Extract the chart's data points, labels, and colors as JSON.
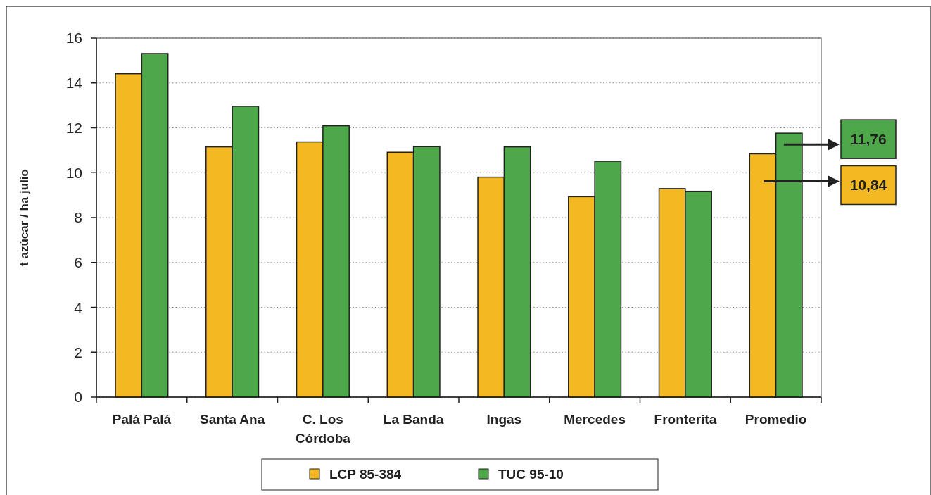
{
  "chart_data": {
    "type": "bar",
    "ylabel": "t azúcar / ha julio",
    "categories": [
      "Palá Palá",
      "Santa Ana",
      "C. Los Córdoba",
      "La Banda",
      "Ingas",
      "Mercedes",
      "Fronterita",
      "Promedio"
    ],
    "series": [
      {
        "name": "LCP 85-384",
        "color": "#f4b823",
        "values": [
          14.41,
          11.15,
          11.37,
          10.91,
          9.8,
          8.93,
          9.29,
          10.84
        ]
      },
      {
        "name": "TUC 95-10",
        "color": "#4ea84a",
        "values": [
          15.31,
          12.96,
          12.09,
          11.16,
          11.15,
          10.51,
          9.17,
          11.76
        ]
      }
    ],
    "ylim": [
      0,
      16
    ],
    "yticks": [
      0,
      2,
      4,
      6,
      8,
      10,
      12,
      14,
      16
    ],
    "grid": "y",
    "legend": "bottom",
    "annotations": [
      "11,76",
      "10,84"
    ]
  }
}
